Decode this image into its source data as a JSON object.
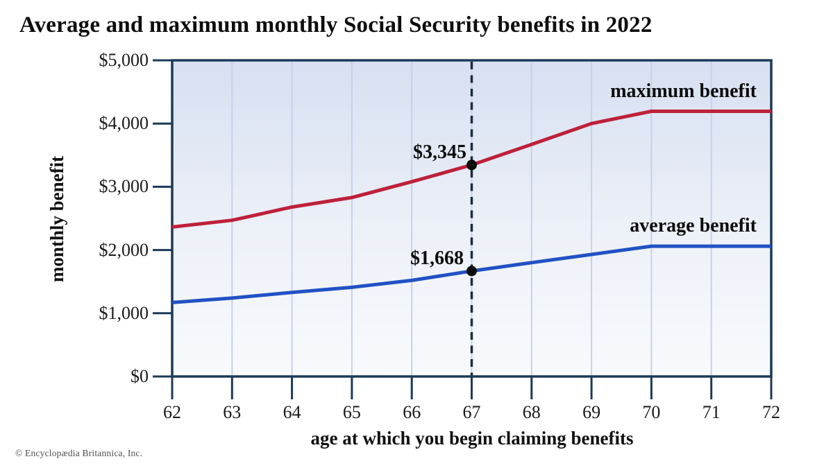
{
  "copyright": "© Encyclopædia Britannica, Inc.",
  "chart_data": {
    "type": "line",
    "title": "Average and maximum monthly Social Security benefits in 2022",
    "xlabel": "age at which you begin claiming benefits",
    "ylabel": "monthly benefit",
    "x": [
      62,
      63,
      64,
      65,
      66,
      67,
      68,
      69,
      70,
      71,
      72
    ],
    "x_tick_labels": [
      "62",
      "63",
      "64",
      "65",
      "66",
      "67",
      "68",
      "69",
      "70",
      "71",
      "72"
    ],
    "xlim": [
      62,
      72
    ],
    "ylim": [
      0,
      5000
    ],
    "y_ticks": [
      {
        "value": 0,
        "label": "$0"
      },
      {
        "value": 1000,
        "label": "$1,000"
      },
      {
        "value": 2000,
        "label": "$2,000"
      },
      {
        "value": 3000,
        "label": "$3,000"
      },
      {
        "value": 4000,
        "label": "$4,000"
      },
      {
        "value": 5000,
        "label": "$5,000"
      }
    ],
    "grid": "vertical",
    "legend_position": "inline-right-of-plot",
    "series": [
      {
        "name": "maximum benefit",
        "color": "#be203a",
        "values": [
          2364,
          2470,
          2680,
          2830,
          3080,
          3345,
          3670,
          4000,
          4194,
          4194,
          4194
        ]
      },
      {
        "name": "average benefit",
        "color": "#2151c4",
        "values": [
          1170,
          1240,
          1330,
          1410,
          1520,
          1668,
          1800,
          1930,
          2060,
          2060,
          2060
        ]
      }
    ],
    "highlight_age": 67,
    "annotations": [
      {
        "series": "maximum benefit",
        "age": 67,
        "value": 3345,
        "label": "$3,345"
      },
      {
        "series": "average benefit",
        "age": 67,
        "value": 1668,
        "label": "$1,668"
      }
    ],
    "colors": {
      "axis": "#1c3a58",
      "grid": "#c6d1ea",
      "dashed_line": "#1d2c3c",
      "dot": "#0b0b0b",
      "plot_bg_top": "#d7e0f1",
      "plot_bg_mid": "#edf1f8",
      "plot_bg_bottom": "#f8fafd"
    }
  }
}
